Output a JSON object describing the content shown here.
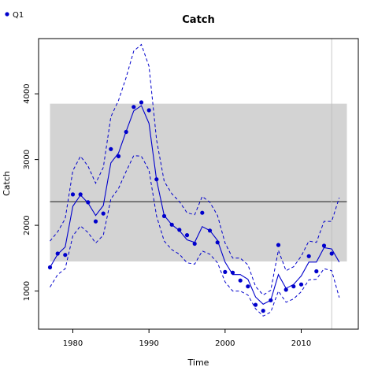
{
  "chart_data": {
    "type": "line",
    "title": "Catch",
    "xlabel": "Time",
    "ylabel": "Catch",
    "xlim": [
      1975.5,
      2017.5
    ],
    "ylim": [
      420,
      4840
    ],
    "x_ticks": [
      1980,
      1990,
      2000,
      2010
    ],
    "y_ticks": [
      1000,
      2000,
      3000,
      4000
    ],
    "grid": false,
    "legend_placement": "top-left",
    "colors": {
      "series": "#0000cc",
      "band": "#d3d3d3",
      "reference": "#000000",
      "vline": "#bbbbbb"
    },
    "reference_band": {
      "y_min": 1450,
      "y_max": 3850,
      "x_min": 1977,
      "x_max": 2016
    },
    "reference_line": {
      "y": 2360
    },
    "vertical_line": {
      "x": 2014
    },
    "series": [
      {
        "name": "Q1",
        "observed": {
          "x": [
            1977,
            1978,
            1979,
            1980,
            1981,
            1982,
            1983,
            1984,
            1985,
            1986,
            1987,
            1988,
            1989,
            1990,
            1991,
            1992,
            1993,
            1994,
            1995,
            1996,
            1997,
            1998,
            1999,
            2000,
            2001,
            2002,
            2003,
            2004,
            2005,
            2006,
            2007,
            2008,
            2009,
            2010,
            2011,
            2012,
            2013,
            2014
          ],
          "y": [
            1360,
            1570,
            1550,
            2470,
            2470,
            2350,
            2060,
            2180,
            3160,
            3050,
            3420,
            3800,
            3870,
            3750,
            2700,
            2140,
            2010,
            1930,
            1850,
            1720,
            2190,
            1920,
            1740,
            1290,
            1280,
            1160,
            1070,
            790,
            700,
            860,
            1700,
            1020,
            1070,
            1100,
            1530,
            1300,
            1690,
            1570
          ]
        },
        "fit": {
          "x": [
            1977,
            1978,
            1979,
            1980,
            1981,
            1982,
            1983,
            1984,
            1985,
            1986,
            1987,
            1988,
            1989,
            1990,
            1991,
            1992,
            1993,
            1994,
            1995,
            1996,
            1997,
            1998,
            1999,
            2000,
            2001,
            2002,
            2003,
            2004,
            2005,
            2006,
            2007,
            2008,
            2009,
            2010,
            2011,
            2012,
            2013,
            2014,
            2015
          ],
          "y": [
            1360,
            1560,
            1670,
            2290,
            2460,
            2340,
            2150,
            2300,
            2950,
            3100,
            3430,
            3740,
            3820,
            3550,
            2690,
            2150,
            2010,
            1920,
            1780,
            1740,
            1980,
            1920,
            1770,
            1440,
            1250,
            1250,
            1180,
            910,
            800,
            860,
            1250,
            1040,
            1100,
            1230,
            1440,
            1440,
            1660,
            1640,
            1440
          ]
        },
        "ci_upper": {
          "x": [
            1977,
            1978,
            1979,
            1980,
            1981,
            1982,
            1983,
            1984,
            1985,
            1986,
            1987,
            1988,
            1989,
            1990,
            1991,
            1992,
            1993,
            1994,
            1995,
            1996,
            1997,
            1998,
            1999,
            2000,
            2001,
            2002,
            2003,
            2004,
            2005,
            2006,
            2007,
            2008,
            2009,
            2010,
            2011,
            2012,
            2013,
            2014,
            2015
          ],
          "y": [
            1760,
            1900,
            2100,
            2830,
            3050,
            2900,
            2640,
            2880,
            3650,
            3900,
            4250,
            4650,
            4750,
            4420,
            3300,
            2670,
            2480,
            2360,
            2190,
            2160,
            2440,
            2350,
            2150,
            1730,
            1500,
            1500,
            1400,
            1070,
            940,
            1010,
            1620,
            1310,
            1370,
            1530,
            1760,
            1740,
            2060,
            2060,
            2420
          ]
        },
        "ci_lower": {
          "x": [
            1977,
            1978,
            1979,
            1980,
            1981,
            1982,
            1983,
            1984,
            1985,
            1986,
            1987,
            1988,
            1989,
            1990,
            1991,
            1992,
            1993,
            1994,
            1995,
            1996,
            1997,
            1998,
            1999,
            2000,
            2001,
            2002,
            2003,
            2004,
            2005,
            2006,
            2007,
            2008,
            2009,
            2010,
            2011,
            2012,
            2013,
            2014,
            2015
          ],
          "y": [
            1060,
            1250,
            1340,
            1840,
            1990,
            1890,
            1730,
            1850,
            2400,
            2560,
            2820,
            3060,
            3050,
            2840,
            2140,
            1760,
            1630,
            1560,
            1430,
            1410,
            1610,
            1560,
            1430,
            1140,
            1000,
            1000,
            940,
            730,
            620,
            680,
            1000,
            830,
            880,
            990,
            1170,
            1180,
            1340,
            1310,
            900
          ]
        }
      }
    ]
  }
}
